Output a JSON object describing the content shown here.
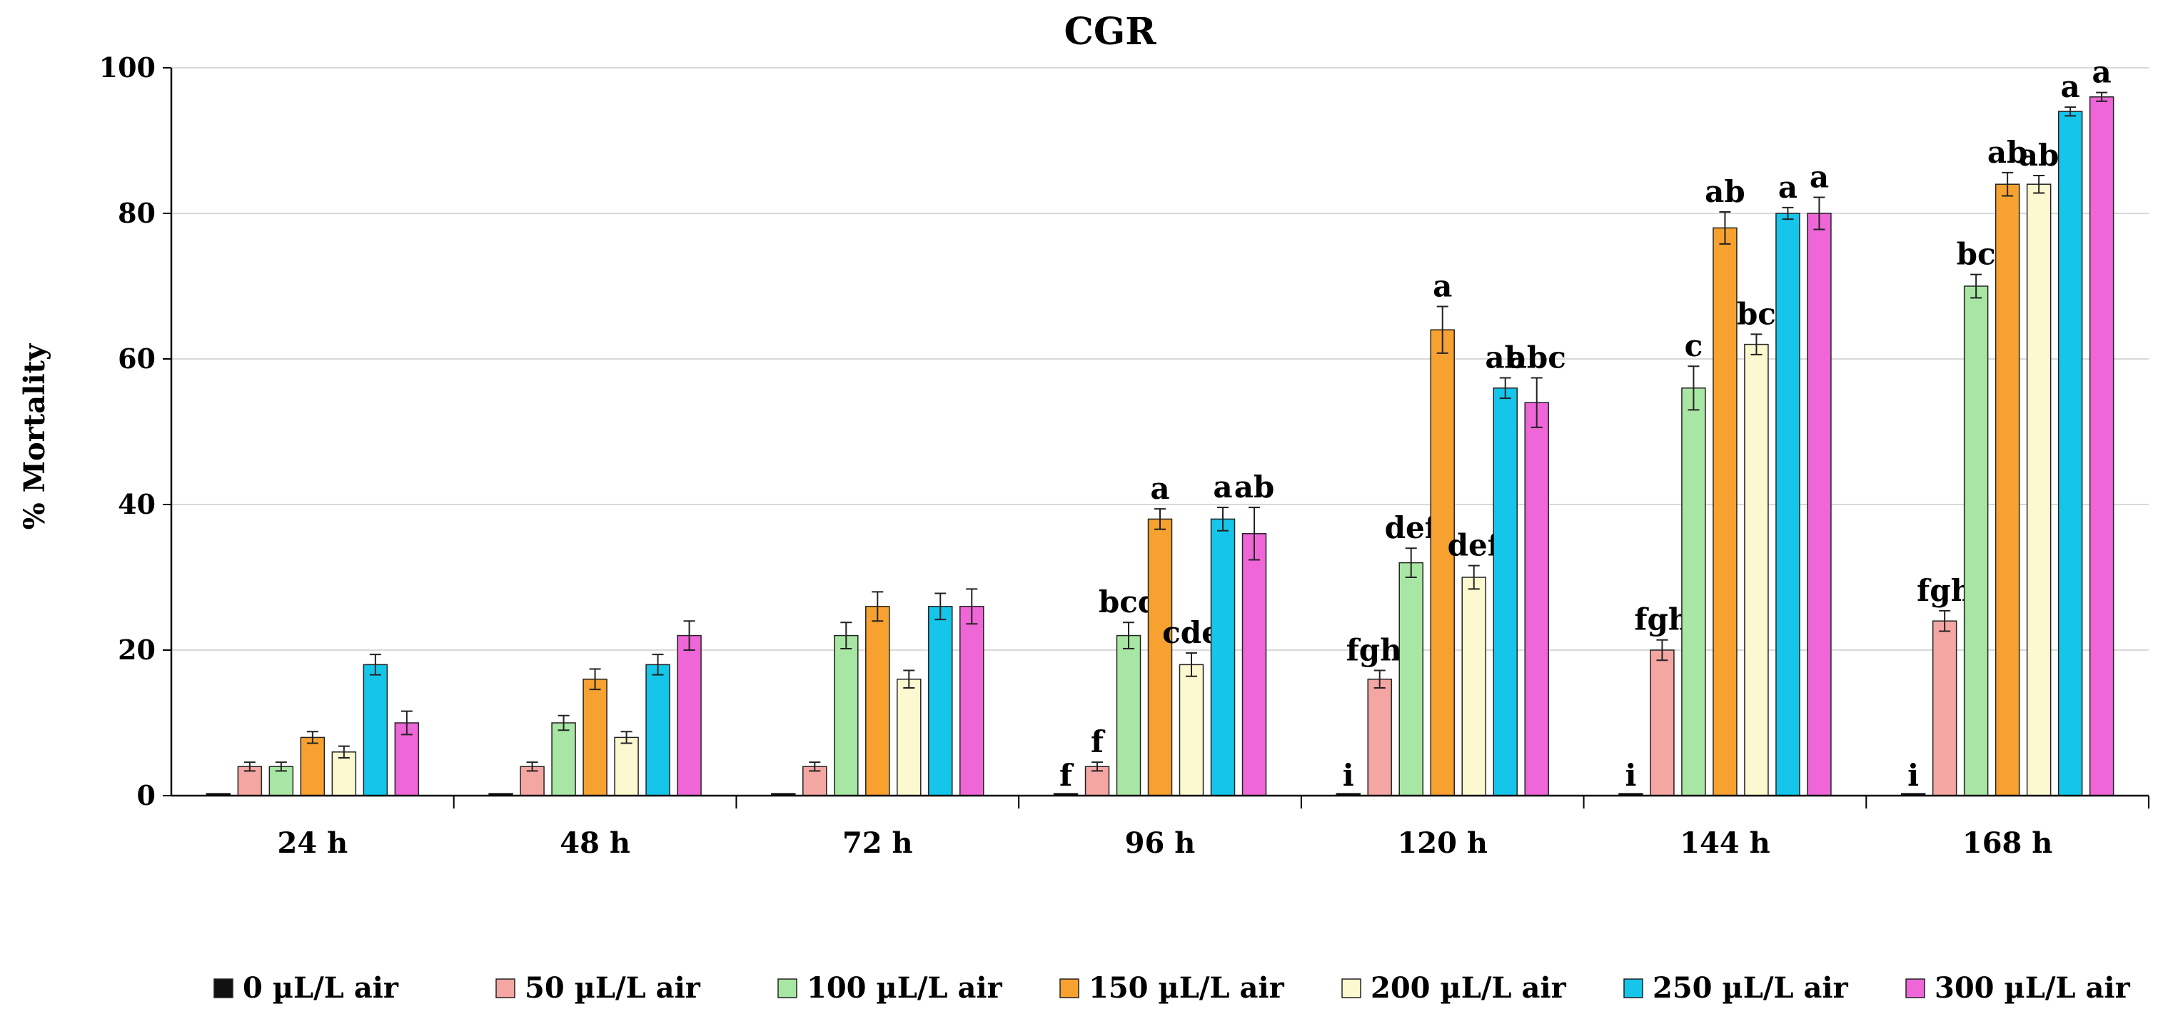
{
  "chart_data": {
    "type": "bar",
    "title": "CGR",
    "xlabel": "",
    "ylabel": "% Mortality",
    "ylim": [
      0,
      100
    ],
    "yticks": [
      "0",
      "20",
      "40",
      "60",
      "80",
      "100"
    ],
    "grid": true,
    "legend_position": "bottom",
    "categories": [
      "24 h",
      "48 h",
      "72 h",
      "96 h",
      "120 h",
      "144 h",
      "168 h"
    ],
    "series": [
      {
        "name": "0 µL/L air",
        "color": "#111111",
        "values": [
          0,
          0,
          0,
          0,
          0,
          0,
          0
        ],
        "errors": [
          0,
          0,
          0,
          0,
          0,
          0,
          0
        ],
        "labels": [
          "",
          "",
          "",
          "f",
          "i",
          "i",
          "i"
        ]
      },
      {
        "name": "50 µL/L air",
        "color": "#f4a6a2",
        "values": [
          4,
          4,
          4,
          4,
          16,
          20,
          24
        ],
        "errors": [
          0.6,
          0.6,
          0.6,
          0.6,
          1.2,
          1.4,
          1.4
        ],
        "labels": [
          "",
          "",
          "",
          "f",
          "fghi",
          "fgh",
          "fgh"
        ]
      },
      {
        "name": "100 µL/L air",
        "color": "#a8e6a3",
        "values": [
          4,
          10,
          22,
          22,
          32,
          56,
          70
        ],
        "errors": [
          0.6,
          1.0,
          1.8,
          1.8,
          2.0,
          3.0,
          1.6
        ],
        "labels": [
          "",
          "",
          "",
          "bcd",
          "def",
          "c",
          "bc"
        ]
      },
      {
        "name": "150 µL/L air",
        "color": "#f7a130",
        "values": [
          8,
          16,
          26,
          38,
          64,
          78,
          84
        ],
        "errors": [
          0.8,
          1.4,
          2.0,
          1.4,
          3.2,
          2.2,
          1.6
        ],
        "labels": [
          "",
          "",
          "",
          "a",
          "a",
          "ab",
          "ab"
        ]
      },
      {
        "name": "200 µL/L air",
        "color": "#fcf8cf",
        "values": [
          6,
          8,
          16,
          18,
          30,
          62,
          84
        ],
        "errors": [
          0.8,
          0.8,
          1.2,
          1.6,
          1.6,
          1.4,
          1.2
        ],
        "labels": [
          "",
          "",
          "",
          "cde",
          "def",
          "bc",
          "ab"
        ]
      },
      {
        "name": "250 µL/L air",
        "color": "#15c5ea",
        "values": [
          18,
          18,
          26,
          38,
          56,
          80,
          94
        ],
        "errors": [
          1.4,
          1.4,
          1.8,
          1.6,
          1.4,
          0.8,
          0.6
        ],
        "labels": [
          "",
          "",
          "",
          "a",
          "ab",
          "a",
          "a"
        ]
      },
      {
        "name": "300 µL/L air",
        "color": "#ee66d7",
        "values": [
          10,
          22,
          26,
          36,
          54,
          80,
          96
        ],
        "errors": [
          1.6,
          2.0,
          2.4,
          3.6,
          3.4,
          2.2,
          0.6
        ],
        "labels": [
          "",
          "",
          "",
          "ab",
          "abc",
          "a",
          "a"
        ]
      }
    ]
  }
}
